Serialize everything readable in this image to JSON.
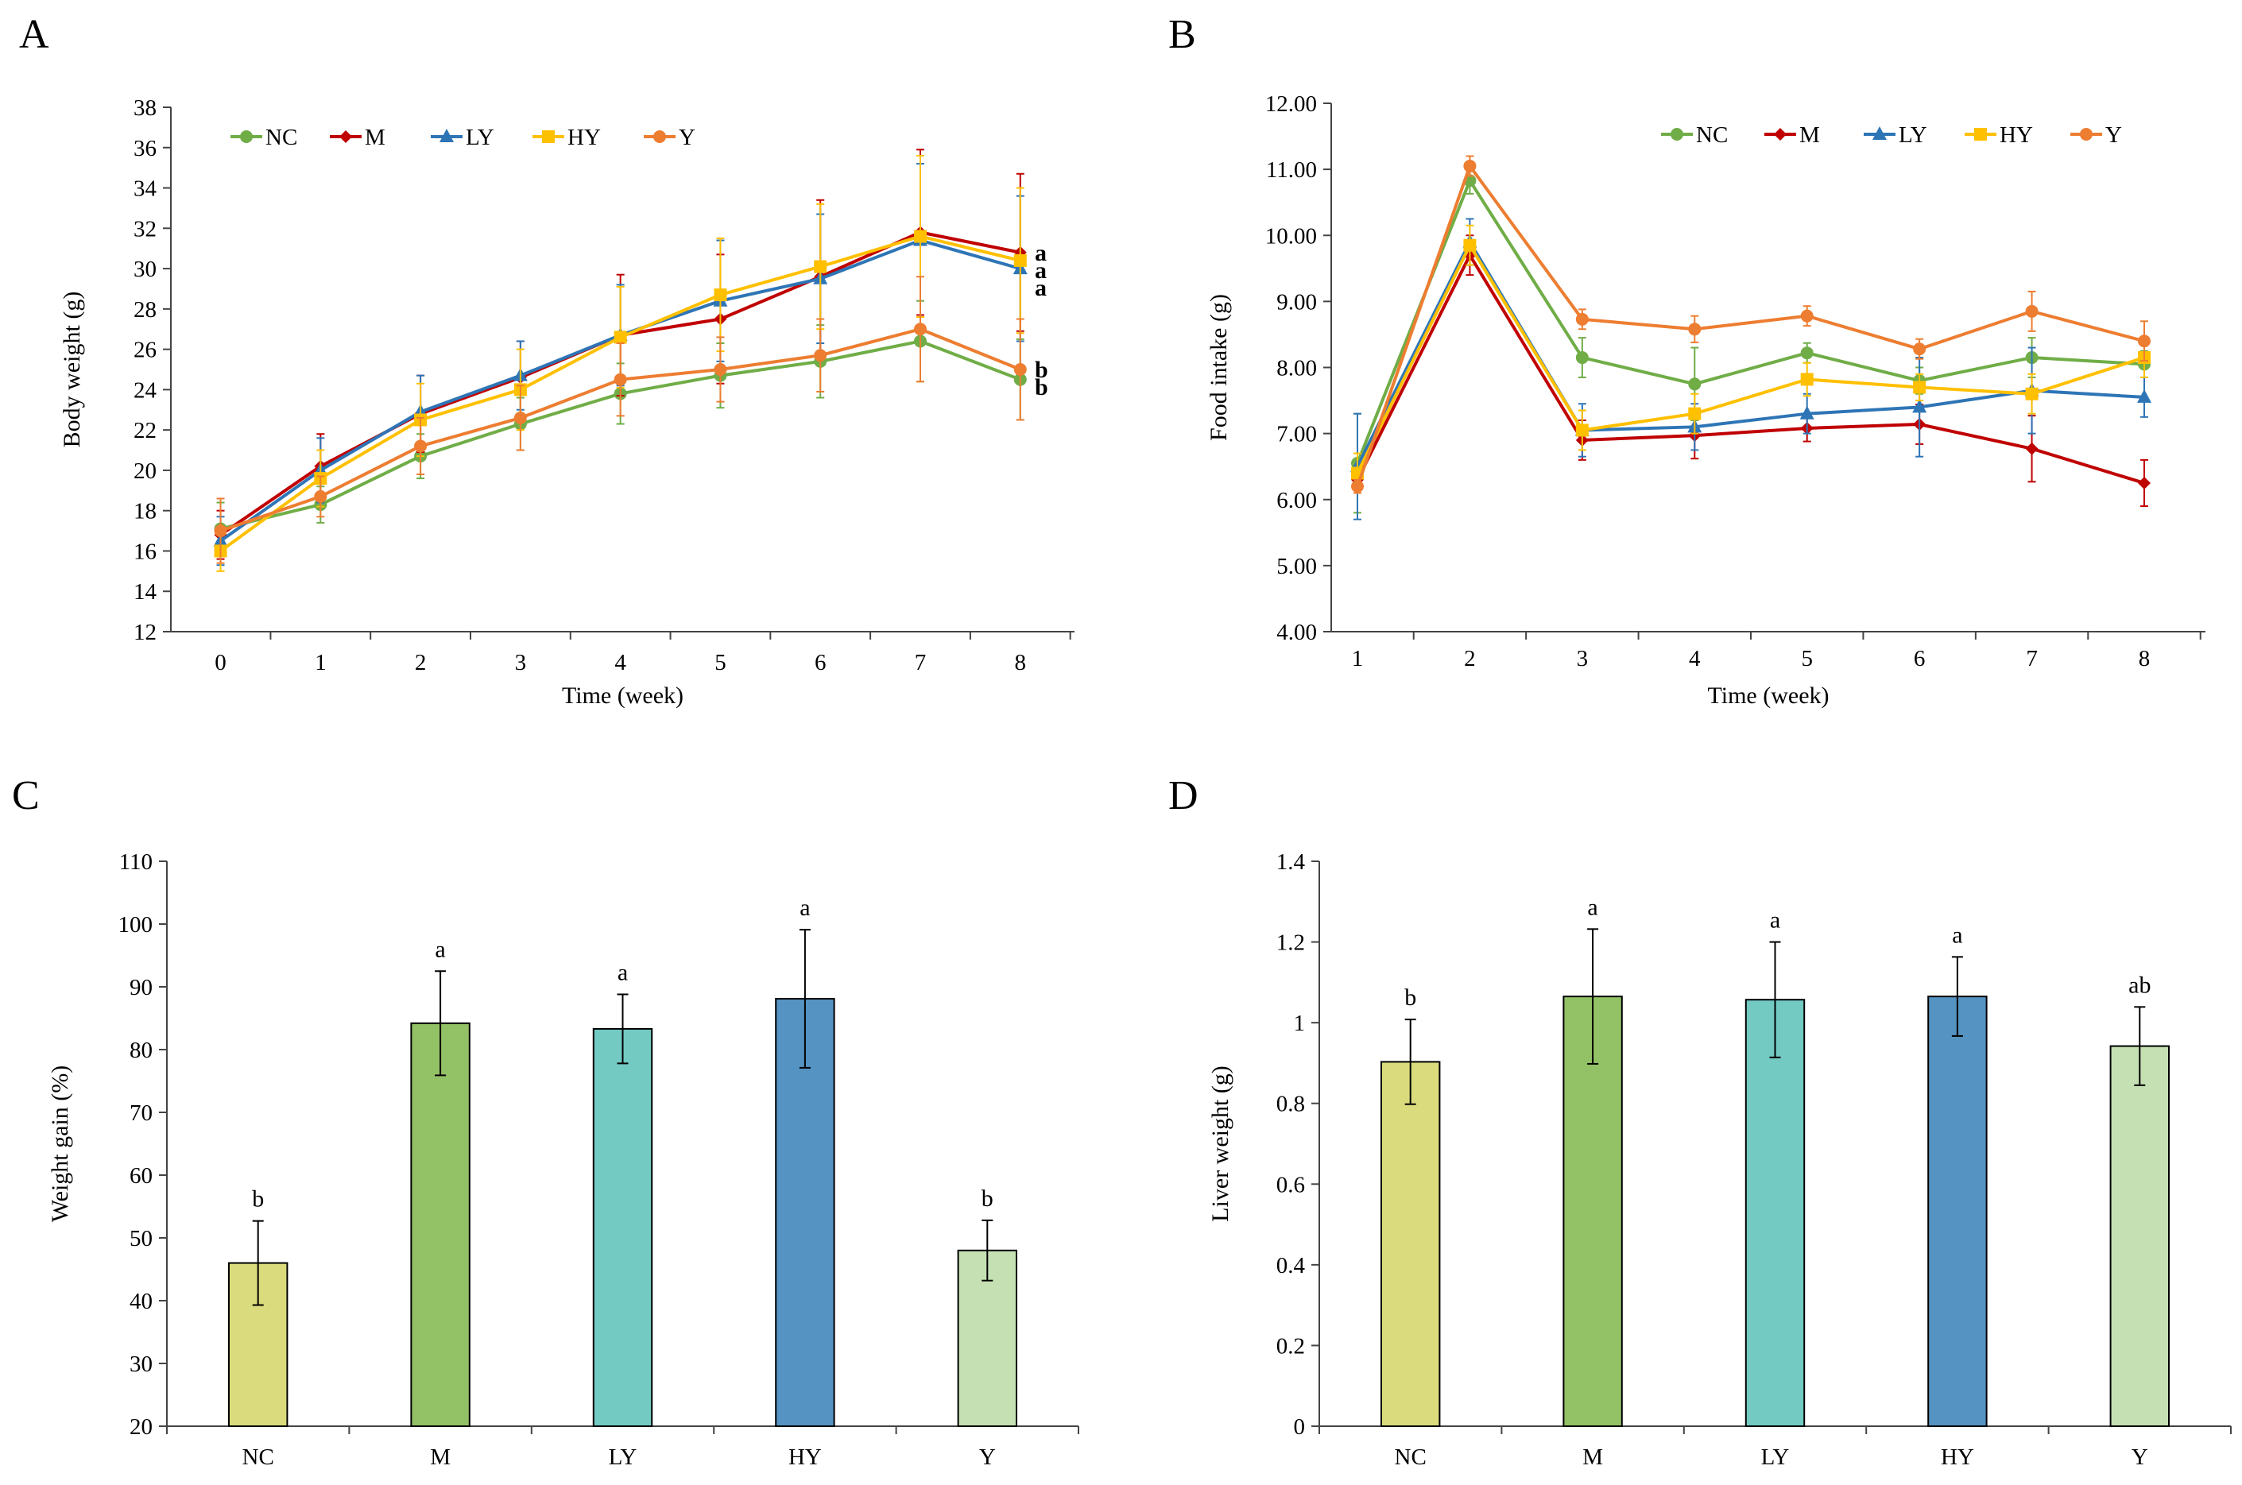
{
  "panels": {
    "A": {
      "letter": "A"
    },
    "B": {
      "letter": "B"
    },
    "C": {
      "letter": "C"
    },
    "D": {
      "letter": "D"
    }
  },
  "colors": {
    "NC": "#70AD47",
    "M": "#C00000",
    "LY": "#2E75B6",
    "HY": "#FFC000",
    "Y": "#ED7D31"
  },
  "chart_data": [
    {
      "id": "A",
      "type": "line",
      "xlabel": "Time (week)",
      "ylabel": "Body weight (g)",
      "ylim": [
        12,
        38
      ],
      "yticks": [
        "12",
        "14",
        "16",
        "18",
        "20",
        "22",
        "24",
        "26",
        "28",
        "30",
        "32",
        "34",
        "36",
        "38"
      ],
      "x": [
        "0",
        "1",
        "2",
        "3",
        "4",
        "5",
        "6",
        "7",
        "8"
      ],
      "grid": false,
      "legend": "top-left",
      "series": [
        {
          "name": "NC",
          "marker": "circle",
          "values": [
            17.1,
            18.3,
            20.7,
            22.3,
            23.8,
            24.7,
            25.4,
            26.4,
            24.5
          ],
          "errors": [
            1.3,
            0.9,
            1.1,
            1.3,
            1.5,
            1.6,
            1.8,
            2.0,
            2.0
          ],
          "sig": "b"
        },
        {
          "name": "M",
          "marker": "diamond",
          "values": [
            16.8,
            20.2,
            22.8,
            24.6,
            26.7,
            27.5,
            29.6,
            31.8,
            30.8
          ],
          "errors": [
            1.2,
            1.6,
            1.9,
            1.8,
            3.0,
            3.2,
            3.8,
            4.1,
            3.9
          ],
          "sig": "a"
        },
        {
          "name": "LY",
          "marker": "triangle",
          "values": [
            16.5,
            20.0,
            22.9,
            24.7,
            26.7,
            28.4,
            29.5,
            31.4,
            30.0
          ],
          "errors": [
            1.2,
            1.6,
            1.8,
            1.7,
            2.5,
            3.0,
            3.2,
            3.8,
            3.6
          ],
          "sig": "a"
        },
        {
          "name": "HY",
          "marker": "square",
          "values": [
            16.0,
            19.6,
            22.5,
            24.0,
            26.6,
            28.7,
            30.1,
            31.6,
            30.4
          ],
          "errors": [
            1.0,
            1.4,
            1.8,
            2.0,
            2.5,
            2.8,
            3.1,
            4.0,
            3.6
          ],
          "sig": "a"
        },
        {
          "name": "Y",
          "marker": "circle",
          "values": [
            17.0,
            18.7,
            21.2,
            22.6,
            24.5,
            25.0,
            25.7,
            27.0,
            25.0
          ],
          "errors": [
            1.6,
            1.0,
            1.4,
            1.6,
            1.8,
            1.6,
            1.8,
            2.6,
            2.5
          ],
          "sig": "b"
        }
      ]
    },
    {
      "id": "B",
      "type": "line",
      "xlabel": "Time (week)",
      "ylabel": "Food intake (g)",
      "ylim": [
        4.0,
        12.0
      ],
      "yticks": [
        "4.00",
        "5.00",
        "6.00",
        "7.00",
        "8.00",
        "9.00",
        "10.00",
        "11.00",
        "12.00"
      ],
      "x": [
        "1",
        "2",
        "3",
        "4",
        "5",
        "6",
        "7",
        "8"
      ],
      "grid": false,
      "legend": "top-right",
      "series": [
        {
          "name": "NC",
          "marker": "circle",
          "values": [
            6.55,
            10.83,
            8.15,
            7.75,
            8.22,
            7.8,
            8.15,
            8.05
          ],
          "errors": [
            0.75,
            0.2,
            0.3,
            0.55,
            0.15,
            0.2,
            0.3,
            0.2
          ]
        },
        {
          "name": "M",
          "marker": "diamond",
          "values": [
            6.3,
            9.7,
            6.9,
            6.97,
            7.08,
            7.14,
            6.77,
            6.25
          ],
          "errors": [
            0.2,
            0.3,
            0.3,
            0.35,
            0.2,
            0.3,
            0.5,
            0.35
          ]
        },
        {
          "name": "LY",
          "marker": "triangle",
          "values": [
            6.5,
            9.9,
            7.05,
            7.1,
            7.3,
            7.4,
            7.65,
            7.55
          ],
          "errors": [
            0.8,
            0.35,
            0.4,
            0.35,
            0.3,
            0.75,
            0.65,
            0.3
          ]
        },
        {
          "name": "HY",
          "marker": "square",
          "values": [
            6.4,
            9.85,
            7.05,
            7.3,
            7.82,
            7.7,
            7.6,
            8.15
          ],
          "errors": [
            0.3,
            0.3,
            0.3,
            0.3,
            0.25,
            0.2,
            0.3,
            0.3
          ]
        },
        {
          "name": "Y",
          "marker": "circle",
          "values": [
            6.2,
            11.05,
            8.73,
            8.58,
            8.78,
            8.28,
            8.85,
            8.4
          ],
          "errors": [
            0.1,
            0.15,
            0.15,
            0.2,
            0.15,
            0.15,
            0.3,
            0.3
          ]
        }
      ]
    },
    {
      "id": "C",
      "type": "bar",
      "xlabel": "",
      "ylabel": "Weight gain (%)",
      "ylim": [
        20,
        110
      ],
      "yticks": [
        "20",
        "30",
        "40",
        "50",
        "60",
        "70",
        "80",
        "90",
        "100",
        "110"
      ],
      "categories": [
        "NC",
        "M",
        "LY",
        "HY",
        "Y"
      ],
      "values": [
        46.0,
        84.2,
        83.3,
        88.1,
        48.0
      ],
      "errors": [
        6.7,
        8.3,
        5.5,
        11.0,
        4.8
      ],
      "sig": [
        "b",
        "a",
        "a",
        "a",
        "b"
      ],
      "bar_colors": [
        "#D9DB7C",
        "#93C166",
        "#72CAC3",
        "#5593C2",
        "#C5E0B3"
      ]
    },
    {
      "id": "D",
      "type": "bar",
      "xlabel": "",
      "ylabel": "Liver weight (g)",
      "ylim": [
        0,
        1.4
      ],
      "yticks": [
        "0",
        "0.2",
        "0.4",
        "0.6",
        "0.8",
        "1",
        "1.2",
        "1.4"
      ],
      "categories": [
        "NC",
        "M",
        "LY",
        "HY",
        "Y"
      ],
      "values": [
        0.903,
        1.065,
        1.057,
        1.065,
        0.942
      ],
      "errors": [
        0.105,
        0.167,
        0.143,
        0.098,
        0.097
      ],
      "sig": [
        "b",
        "a",
        "a",
        "a",
        "ab"
      ],
      "bar_colors": [
        "#D9DB7C",
        "#93C166",
        "#72CAC3",
        "#5593C2",
        "#C5E0B3"
      ]
    }
  ]
}
